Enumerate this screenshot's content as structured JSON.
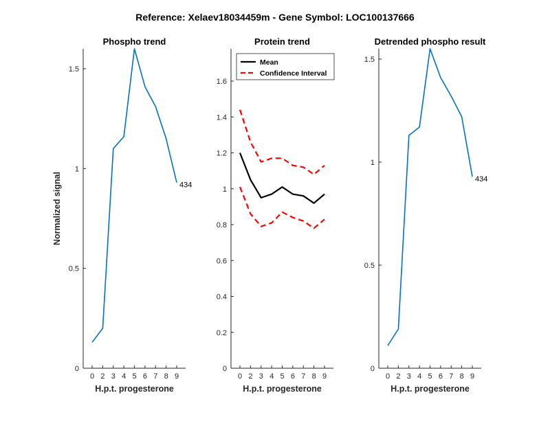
{
  "figure": {
    "suptitle": "Reference:  Xelaev18034459m - Gene Symbol:  LOC100137666"
  },
  "colors": {
    "phospho_line": "#0072BD",
    "mean_line": "#000000",
    "ci_line": "#FF0000",
    "axis": "#262626"
  },
  "chart_data": [
    {
      "type": "line",
      "title": "Phospho trend",
      "xlabel": "H.p.t. progesterone",
      "ylabel": "Normalized signal",
      "categories": [
        "0",
        "2",
        "3",
        "4",
        "5",
        "6",
        "7",
        "8",
        "9"
      ],
      "ylim": [
        0,
        1.6
      ],
      "yticks": [
        0,
        0.5,
        1,
        1.5
      ],
      "ytick_labels": [
        "0",
        "0.5",
        "1",
        "1.5"
      ],
      "series": [
        {
          "values": [
            0.13,
            0.2,
            1.1,
            1.16,
            1.6,
            1.41,
            1.31,
            1.15,
            0.93
          ]
        }
      ],
      "annotation": {
        "text": "434",
        "at_index": 8
      }
    },
    {
      "type": "line",
      "title": "Protein trend",
      "xlabel": "H.p.t. progesterone",
      "ylabel": "",
      "categories": [
        "0",
        "2",
        "3",
        "4",
        "5",
        "6",
        "7",
        "8",
        "9"
      ],
      "ylim": [
        0,
        1.78
      ],
      "yticks": [
        0,
        0.2,
        0.4,
        0.6,
        0.8,
        1,
        1.2,
        1.4,
        1.6
      ],
      "ytick_labels": [
        "0",
        "0.2",
        "0.4",
        "0.6",
        "0.8",
        "1",
        "1.2",
        "1.4",
        "1.6"
      ],
      "legend_position": "top-left",
      "series": [
        {
          "name": "Mean",
          "values": [
            1.2,
            1.05,
            0.95,
            0.97,
            1.01,
            0.97,
            0.96,
            0.92,
            0.97
          ]
        },
        {
          "name": "Confidence Interval",
          "values": [
            1.44,
            1.26,
            1.15,
            1.17,
            1.17,
            1.13,
            1.12,
            1.08,
            1.13
          ]
        },
        {
          "values": [
            1.01,
            0.86,
            0.79,
            0.81,
            0.87,
            0.84,
            0.82,
            0.78,
            0.83
          ]
        }
      ]
    },
    {
      "type": "line",
      "title": "Detrended phospho result",
      "xlabel": "H.p.t. progesterone",
      "ylabel": "",
      "categories": [
        "0",
        "2",
        "3",
        "4",
        "5",
        "6",
        "7",
        "8",
        "9"
      ],
      "ylim": [
        0,
        1.55
      ],
      "yticks": [
        0,
        0.5,
        1,
        1.5
      ],
      "ytick_labels": [
        "0",
        "0.5",
        "1",
        "1.5"
      ],
      "series": [
        {
          "values": [
            0.11,
            0.19,
            1.13,
            1.17,
            1.55,
            1.41,
            1.32,
            1.22,
            0.93
          ]
        }
      ],
      "annotation": {
        "text": "434",
        "at_index": 8
      }
    }
  ]
}
